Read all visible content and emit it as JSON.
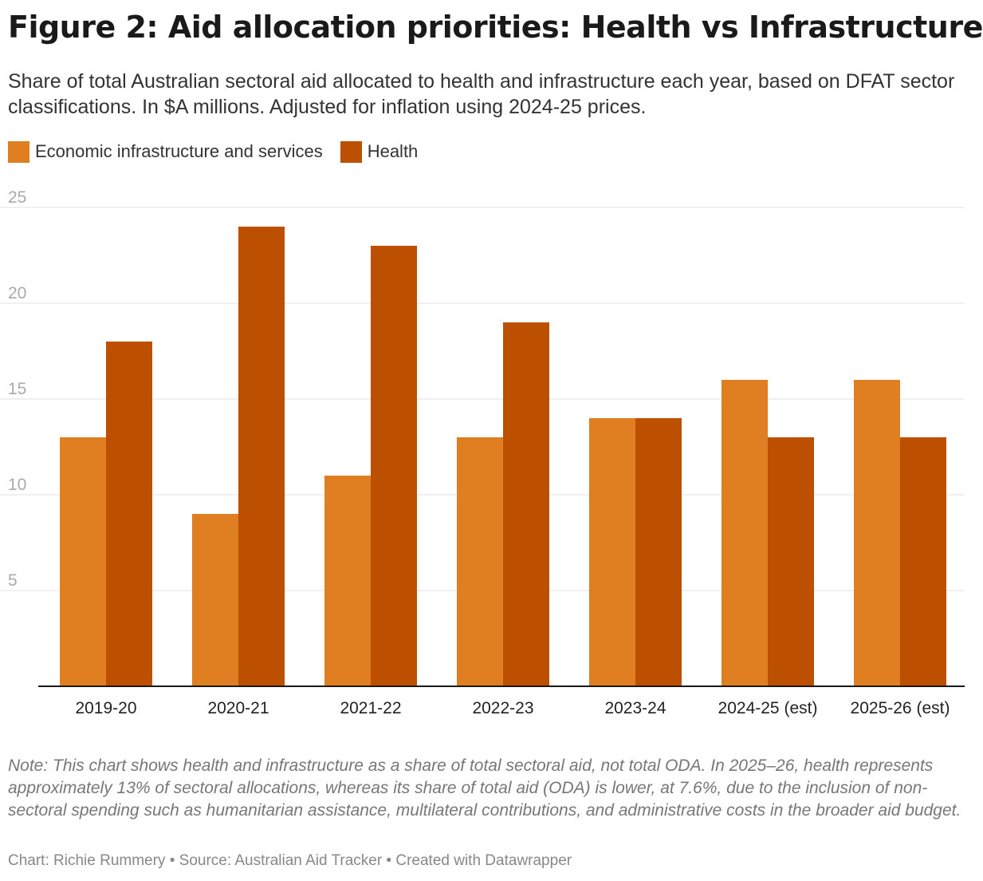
{
  "title": "Figure 2: Aid allocation priorities: Health vs Infrastructure",
  "subtitle": "Share of total Australian sectoral aid allocated to health and infrastructure each year, based on DFAT sector classifications. In $A millions. Adjusted for inflation using 2024-25 prices.",
  "note": "Note: This chart shows health and infrastructure as a share of total sectoral aid, not total ODA. In 2025–26, health represents approximately 13% of sectoral allocations, whereas its share of total aid (ODA) is lower, at 7.6%, due to the inclusion of non-sectoral spending such as humanitarian assistance, multilateral contributions, and administrative costs in the broader aid budget.",
  "credit": "Chart: Richie Rummery • Source: Australian Aid Tracker • Created with Datawrapper",
  "colors": {
    "infrastructure": "#e07f22",
    "health": "#bd5000",
    "grid": "#e2e2e2",
    "axis": "#1a1a1a",
    "tick_text": "#aaaaaa"
  },
  "chart_data": {
    "type": "bar",
    "categories": [
      "2019-20",
      "2020-21",
      "2021-22",
      "2022-23",
      "2023-24",
      "2024-25 (est)",
      "2025-26 (est)"
    ],
    "series": [
      {
        "name": "Economic infrastructure and services",
        "values": [
          13,
          9,
          11,
          13,
          14,
          16,
          16
        ]
      },
      {
        "name": "Health",
        "values": [
          18,
          24,
          23,
          19,
          14,
          13,
          13
        ]
      }
    ],
    "yticks": [
      5,
      10,
      15,
      20,
      25
    ],
    "ylim": [
      0,
      25
    ],
    "grid": true,
    "legend": "top-left"
  }
}
